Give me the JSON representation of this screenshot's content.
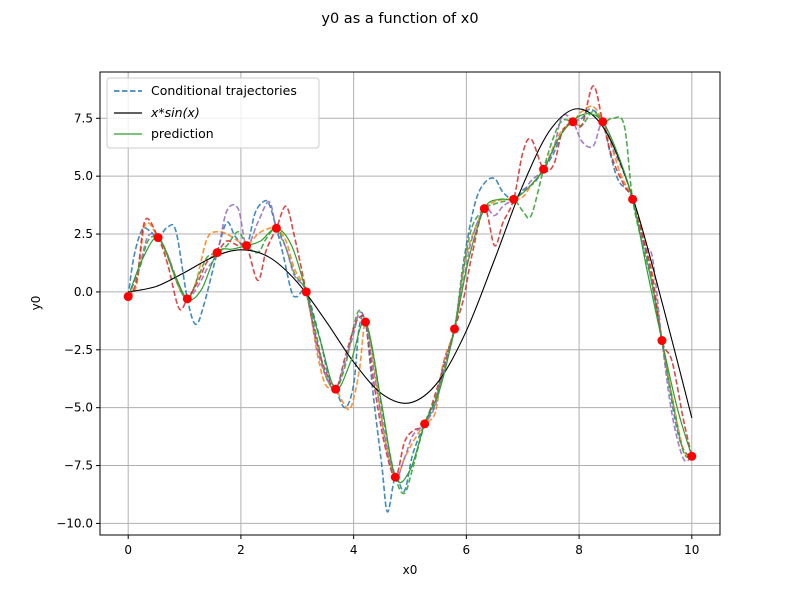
{
  "figure": {
    "title": "y0 as a function of x0"
  },
  "chart_data": {
    "type": "line",
    "title": "y0 as a function of x0",
    "xlabel": "x0",
    "ylabel": "y0",
    "xlim": [
      -0.5,
      10.5
    ],
    "ylim": [
      -10.5,
      9.5
    ],
    "x_ticks": [
      0,
      2,
      4,
      6,
      8,
      10
    ],
    "x_tick_labels": [
      "0",
      "2",
      "4",
      "6",
      "8",
      "10"
    ],
    "y_ticks": [
      -10,
      -7.5,
      -5,
      -2.5,
      0,
      2.5,
      5,
      7.5
    ],
    "y_tick_labels": [
      "−10.0",
      "−7.5",
      "−5.0",
      "−2.5",
      "0.0",
      "2.5",
      "5.0",
      "7.5"
    ],
    "grid": true,
    "legend_position": "top-left",
    "legend": [
      {
        "label": "Conditional trajectories",
        "style": "dashed",
        "color": "#1f77b4"
      },
      {
        "label": "x*sin(x)",
        "label_math": true,
        "style": "solid",
        "color": "#000000"
      },
      {
        "label": "prediction",
        "style": "solid",
        "color": "#2ca02c"
      }
    ],
    "colors": {
      "traj_blue": "#1f77b4",
      "traj_orange": "#ff7f0e",
      "traj_green": "#2ca02c",
      "traj_red": "#d62728",
      "traj_purple": "#9467bd",
      "true_function": "#000000",
      "prediction": "#2ca02c",
      "observations": "#ff0000",
      "grid": "#b0b0b0"
    },
    "series": [
      {
        "name": "x*sin(x)",
        "kind": "function",
        "x": [
          0,
          0.5,
          1,
          1.5,
          2,
          2.5,
          3,
          3.5,
          4,
          4.5,
          5,
          5.5,
          6,
          6.5,
          7,
          7.5,
          8,
          8.5,
          9,
          9.5,
          10
        ],
        "y": [
          0,
          0.24,
          0.84,
          1.5,
          1.82,
          1.5,
          0.42,
          -1.23,
          -3.03,
          -4.4,
          -4.79,
          -3.88,
          -1.68,
          1.4,
          4.6,
          7.04,
          7.91,
          6.83,
          3.71,
          -0.71,
          -5.44
        ]
      },
      {
        "name": "prediction",
        "kind": "prediction",
        "x": [
          0,
          0.25,
          0.53,
          0.8,
          1.05,
          1.3,
          1.58,
          1.85,
          2.1,
          2.35,
          2.63,
          2.9,
          3.16,
          3.42,
          3.68,
          3.95,
          4.21,
          4.48,
          4.74,
          5.0,
          5.26,
          5.53,
          5.79,
          6.05,
          6.32,
          6.58,
          6.84,
          7.1,
          7.37,
          7.63,
          7.89,
          8.16,
          8.42,
          8.68,
          8.95,
          9.2,
          9.47,
          9.74,
          10.0
        ],
        "y": [
          -0.2,
          1.4,
          2.35,
          0.9,
          -0.3,
          0.1,
          1.7,
          1.85,
          2.0,
          2.2,
          2.75,
          2.0,
          0.0,
          -2.2,
          -4.2,
          -3.0,
          -1.3,
          -4.6,
          -8.0,
          -7.7,
          -5.7,
          -4.2,
          -1.6,
          1.5,
          3.6,
          4.0,
          4.0,
          4.5,
          5.3,
          6.6,
          7.4,
          7.7,
          7.35,
          6.0,
          4.0,
          1.0,
          -2.1,
          -5.0,
          -7.1
        ]
      },
      {
        "name": "trajectory-1",
        "kind": "trajectory",
        "color": "#1f77b4",
        "x": [
          0,
          0.1,
          0.25,
          0.4,
          0.53,
          0.7,
          0.85,
          1.05,
          1.2,
          1.35,
          1.58,
          1.75,
          1.9,
          2.1,
          2.25,
          2.4,
          2.5,
          2.63,
          2.75,
          2.9,
          3.0,
          3.16,
          3.4,
          3.55,
          3.68,
          3.85,
          4.0,
          4.1,
          4.21,
          4.35,
          4.5,
          4.6,
          4.74,
          4.9,
          5.05,
          5.26,
          5.45,
          5.6,
          5.79,
          5.95,
          6.15,
          6.32,
          6.5,
          6.65,
          6.84,
          7.0,
          7.2,
          7.37,
          7.55,
          7.7,
          7.89,
          8.05,
          8.2,
          8.42,
          8.55,
          8.7,
          8.95,
          9.2,
          9.47,
          9.7,
          9.85,
          10.0
        ],
        "y": [
          -0.2,
          1.5,
          2.7,
          2.6,
          2.35,
          2.8,
          2.6,
          -0.3,
          -1.4,
          -0.5,
          1.7,
          3.0,
          2.4,
          2.0,
          3.4,
          3.9,
          3.8,
          2.75,
          1.6,
          0.0,
          -0.2,
          0.0,
          -2.0,
          -3.6,
          -4.2,
          -5.0,
          -4.0,
          -1.5,
          -1.3,
          -4.5,
          -7.5,
          -9.5,
          -8.0,
          -8.6,
          -7.0,
          -5.7,
          -4.8,
          -3.0,
          -1.6,
          1.3,
          3.8,
          4.7,
          4.9,
          4.3,
          4.0,
          4.4,
          4.7,
          5.3,
          6.0,
          6.9,
          7.35,
          7.5,
          7.9,
          7.35,
          6.0,
          4.8,
          4.0,
          1.5,
          -2.1,
          -5.5,
          -6.8,
          -7.1
        ]
      },
      {
        "name": "trajectory-2",
        "kind": "trajectory",
        "color": "#ff7f0e",
        "x": [
          0,
          0.15,
          0.3,
          0.53,
          0.7,
          0.9,
          1.05,
          1.2,
          1.4,
          1.58,
          1.75,
          1.95,
          2.1,
          2.3,
          2.45,
          2.63,
          2.8,
          2.95,
          3.16,
          3.35,
          3.5,
          3.68,
          3.82,
          3.95,
          4.1,
          4.21,
          4.35,
          4.55,
          4.74,
          4.9,
          5.05,
          5.26,
          5.45,
          5.6,
          5.79,
          5.95,
          6.1,
          6.32,
          6.5,
          6.7,
          6.84,
          7.0,
          7.15,
          7.37,
          7.55,
          7.7,
          7.89,
          8.05,
          8.25,
          8.42,
          8.6,
          8.75,
          8.95,
          9.15,
          9.3,
          9.47,
          9.65,
          9.85,
          10.0
        ],
        "y": [
          -0.2,
          0.3,
          2.9,
          2.35,
          1.5,
          0.2,
          -0.3,
          0.4,
          2.3,
          2.6,
          2.5,
          2.2,
          2.0,
          2.5,
          2.7,
          2.75,
          2.2,
          1.0,
          0.0,
          -2.6,
          -4.0,
          -4.2,
          -4.8,
          -5.0,
          -3.4,
          -1.3,
          -3.0,
          -6.3,
          -8.0,
          -7.2,
          -6.5,
          -5.7,
          -5.2,
          -3.0,
          -1.6,
          1.0,
          2.4,
          3.6,
          3.9,
          4.0,
          4.0,
          4.1,
          4.6,
          5.3,
          6.3,
          7.0,
          7.35,
          7.8,
          8.0,
          7.35,
          6.1,
          5.0,
          4.0,
          2.3,
          0.8,
          -2.1,
          -4.5,
          -6.8,
          -7.1
        ]
      },
      {
        "name": "trajectory-3",
        "kind": "trajectory",
        "color": "#2ca02c",
        "x": [
          0,
          0.2,
          0.35,
          0.53,
          0.7,
          0.85,
          1.05,
          1.25,
          1.4,
          1.58,
          1.75,
          1.95,
          2.1,
          2.3,
          2.45,
          2.63,
          2.8,
          2.95,
          3.16,
          3.35,
          3.5,
          3.68,
          3.85,
          4.0,
          4.1,
          4.21,
          4.35,
          4.55,
          4.74,
          4.9,
          5.05,
          5.26,
          5.45,
          5.6,
          5.79,
          5.95,
          6.1,
          6.32,
          6.5,
          6.65,
          6.84,
          7.0,
          7.15,
          7.37,
          7.55,
          7.7,
          7.89,
          8.05,
          8.25,
          8.42,
          8.6,
          8.8,
          8.95,
          9.15,
          9.3,
          9.47,
          9.65,
          9.85,
          10.0
        ],
        "y": [
          -0.2,
          1.0,
          2.2,
          2.35,
          1.6,
          0.5,
          -0.3,
          0.7,
          1.5,
          1.7,
          2.0,
          2.6,
          2.0,
          1.7,
          2.3,
          2.75,
          1.9,
          0.8,
          0.0,
          -2.0,
          -3.6,
          -4.2,
          -3.2,
          -1.5,
          -0.8,
          -1.3,
          -2.7,
          -5.8,
          -8.0,
          -8.7,
          -7.6,
          -5.7,
          -4.6,
          -3.4,
          -1.6,
          1.0,
          2.8,
          3.6,
          3.8,
          3.9,
          4.0,
          3.5,
          3.3,
          5.3,
          6.7,
          7.4,
          7.35,
          7.2,
          7.8,
          7.35,
          7.5,
          7.2,
          4.0,
          1.8,
          0.3,
          -2.1,
          -4.6,
          -6.9,
          -7.1
        ]
      },
      {
        "name": "trajectory-4",
        "kind": "trajectory",
        "color": "#d62728",
        "x": [
          0,
          0.15,
          0.3,
          0.53,
          0.7,
          0.9,
          1.05,
          1.25,
          1.4,
          1.58,
          1.75,
          1.95,
          2.1,
          2.3,
          2.45,
          2.63,
          2.8,
          2.95,
          3.16,
          3.35,
          3.5,
          3.68,
          3.85,
          4.0,
          4.1,
          4.21,
          4.35,
          4.55,
          4.74,
          4.9,
          5.05,
          5.26,
          5.45,
          5.6,
          5.79,
          5.95,
          6.1,
          6.32,
          6.5,
          6.65,
          6.84,
          7.0,
          7.15,
          7.37,
          7.55,
          7.7,
          7.89,
          8.05,
          8.25,
          8.42,
          8.6,
          8.8,
          8.95,
          9.15,
          9.3,
          9.47,
          9.65,
          9.85,
          10.0
        ],
        "y": [
          -0.2,
          0.5,
          3.1,
          2.35,
          1.2,
          -0.7,
          -0.3,
          0.5,
          1.3,
          1.7,
          2.2,
          2.0,
          2.0,
          0.5,
          1.8,
          2.75,
          3.7,
          2.4,
          0.0,
          -2.2,
          -3.4,
          -4.2,
          -2.8,
          -1.6,
          -1.1,
          -1.3,
          -3.8,
          -6.6,
          -8.0,
          -6.5,
          -6.0,
          -5.7,
          -4.4,
          -3.2,
          -1.6,
          -0.3,
          1.6,
          3.6,
          2.0,
          3.0,
          4.0,
          6.0,
          6.6,
          5.3,
          5.5,
          6.9,
          7.35,
          7.2,
          8.9,
          7.35,
          5.7,
          4.6,
          4.0,
          2.2,
          0.6,
          -2.1,
          -3.0,
          -5.5,
          -7.1
        ]
      },
      {
        "name": "trajectory-5",
        "kind": "trajectory",
        "color": "#9467bd",
        "x": [
          0,
          0.2,
          0.35,
          0.53,
          0.7,
          0.9,
          1.05,
          1.25,
          1.4,
          1.58,
          1.75,
          1.95,
          2.1,
          2.3,
          2.5,
          2.63,
          2.8,
          2.95,
          3.16,
          3.35,
          3.5,
          3.68,
          3.85,
          4.0,
          4.1,
          4.21,
          4.35,
          4.55,
          4.74,
          4.9,
          5.05,
          5.26,
          5.45,
          5.6,
          5.79,
          5.95,
          6.1,
          6.32,
          6.5,
          6.65,
          6.84,
          7.0,
          7.15,
          7.37,
          7.55,
          7.7,
          7.89,
          8.05,
          8.25,
          8.42,
          8.6,
          8.8,
          8.95,
          9.15,
          9.3,
          9.47,
          9.65,
          9.85,
          10.0
        ],
        "y": [
          -0.2,
          1.1,
          2.4,
          2.35,
          1.6,
          0.3,
          -0.3,
          0.3,
          1.0,
          1.7,
          3.5,
          3.6,
          2.0,
          3.0,
          3.9,
          2.75,
          1.9,
          0.7,
          0.0,
          -2.4,
          -3.6,
          -4.2,
          -3.0,
          -1.8,
          -0.9,
          -1.3,
          -3.3,
          -6.2,
          -8.0,
          -7.2,
          -6.2,
          -5.7,
          -4.9,
          -3.3,
          -1.6,
          0.5,
          2.3,
          3.6,
          3.3,
          3.7,
          4.0,
          4.3,
          4.8,
          5.3,
          6.2,
          7.6,
          7.35,
          6.5,
          6.3,
          7.35,
          6.2,
          5.1,
          4.0,
          2.0,
          1.5,
          -2.1,
          -5.3,
          -7.2,
          -7.1
        ]
      },
      {
        "name": "observations",
        "kind": "points",
        "x": [
          0,
          0.53,
          1.05,
          1.58,
          2.1,
          2.63,
          3.16,
          3.68,
          4.21,
          4.74,
          5.26,
          5.79,
          6.32,
          6.84,
          7.37,
          7.89,
          8.42,
          8.95,
          9.47,
          10.0
        ],
        "y": [
          -0.2,
          2.35,
          -0.3,
          1.7,
          2.0,
          2.75,
          0.0,
          -4.2,
          -1.3,
          -8.0,
          -5.7,
          -1.6,
          3.6,
          4.0,
          5.3,
          7.35,
          7.35,
          4.0,
          -2.1,
          -7.1
        ]
      }
    ]
  }
}
